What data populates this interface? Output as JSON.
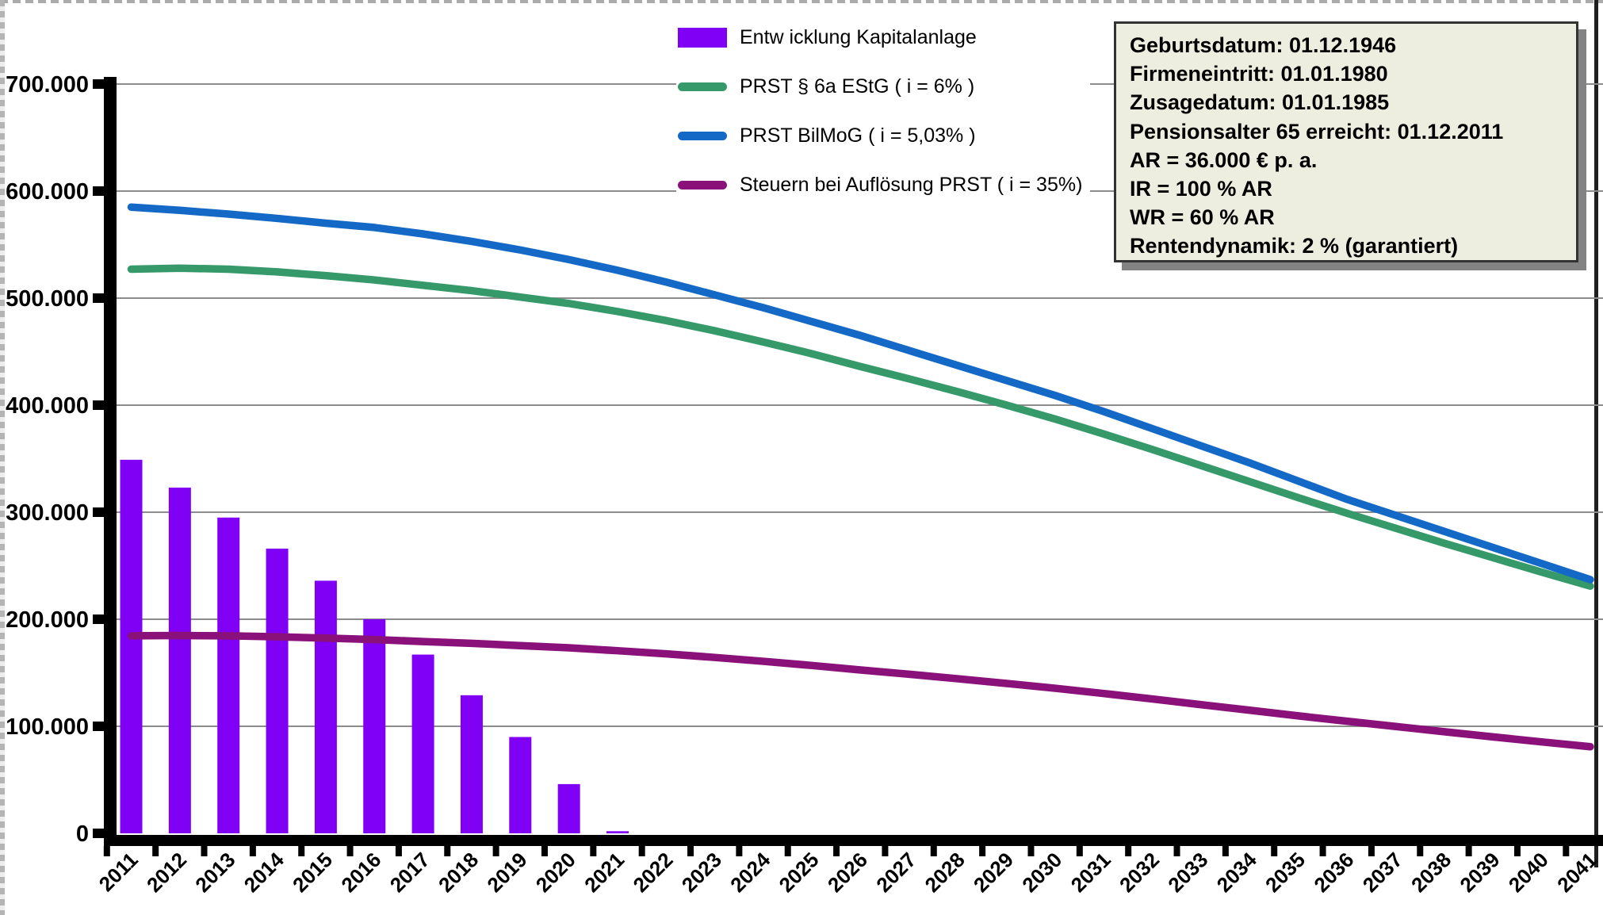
{
  "legend": {
    "items": [
      {
        "label": "Entw icklung Kapitalanlage",
        "swatch": "bar",
        "color": "#7f00f5"
      },
      {
        "label": "PRST § 6a EStG ( i = 6% )",
        "swatch": "line",
        "color": "#36996a"
      },
      {
        "label": "PRST BilMoG ( i = 5,03% )",
        "swatch": "line",
        "color": "#1468c6"
      },
      {
        "label": "Steuern bei Auflösung PRST ( i = 35%)",
        "swatch": "line",
        "color": "#8a107a"
      }
    ]
  },
  "info_box": {
    "lines": [
      "Geburtsdatum: 01.12.1946",
      "Firmeneintritt: 01.01.1980",
      "Zusagedatum: 01.01.1985",
      "Pensionsalter 65 erreicht: 01.12.2011",
      "AR = 36.000 € p. a.",
      "IR = 100 % AR",
      "WR = 60 % AR",
      "Rentendynamik: 2 % (garantiert)"
    ]
  },
  "chart_data": {
    "type": "bar+line",
    "title": "",
    "xlabel": "",
    "ylabel": "",
    "grid": true,
    "legend_position": "top-center",
    "ylim": [
      0,
      700000
    ],
    "ytick_step": 100000,
    "ytick_labels": [
      "0",
      "100.000",
      "200.000",
      "300.000",
      "400.000",
      "500.000",
      "600.000",
      "700.000"
    ],
    "categories": [
      "2011",
      "2012",
      "2013",
      "2014",
      "2015",
      "2016",
      "2017",
      "2018",
      "2019",
      "2020",
      "2021",
      "2022",
      "2023",
      "2024",
      "2025",
      "2026",
      "2027",
      "2028",
      "2029",
      "2030",
      "2031",
      "2032",
      "2033",
      "2034",
      "2035",
      "2036",
      "2037",
      "2038",
      "2039",
      "2040",
      "2041"
    ],
    "series": [
      {
        "name": "Entw icklung Kapitalanlage",
        "type": "bar",
        "color": "#7f00f5",
        "values": [
          349000,
          323000,
          295000,
          266000,
          236000,
          200000,
          167000,
          129000,
          90000,
          46000,
          2000,
          0,
          0,
          0,
          0,
          0,
          0,
          0,
          0,
          0,
          0,
          0,
          0,
          0,
          0,
          0,
          0,
          0,
          0,
          0,
          0
        ]
      },
      {
        "name": "PRST § 6a EStG ( i = 6% )",
        "type": "line",
        "color": "#36996a",
        "values": [
          527000,
          528000,
          527000,
          524500,
          521000,
          517000,
          512000,
          507000,
          501000,
          495000,
          487500,
          479000,
          469500,
          459000,
          448000,
          436000,
          424500,
          412500,
          400000,
          387000,
          373000,
          358500,
          343500,
          328500,
          313500,
          299000,
          285000,
          271000,
          257500,
          244000,
          231000
        ]
      },
      {
        "name": "PRST BilMoG ( i = 5,03% )",
        "type": "line",
        "color": "#1468c6",
        "values": [
          585000,
          582000,
          578500,
          574500,
          570000,
          566000,
          560000,
          553000,
          545000,
          536000,
          526000,
          515000,
          503000,
          491000,
          478000,
          465000,
          451000,
          437000,
          423000,
          409000,
          394000,
          378000,
          362000,
          346000,
          329000,
          312000,
          297000,
          282000,
          267000,
          252000,
          237000
        ]
      },
      {
        "name": "Steuern bei Auflösung PRST ( i = 35%)",
        "type": "line",
        "color": "#8a107a",
        "values": [
          184500,
          184800,
          184500,
          183600,
          182400,
          181000,
          179200,
          177500,
          175400,
          173300,
          170600,
          167700,
          164300,
          160700,
          156800,
          152600,
          148600,
          144400,
          140000,
          135500,
          130600,
          125500,
          120200,
          115000,
          109700,
          104700,
          99800,
          94900,
          90100,
          85400,
          80900
        ]
      }
    ],
    "colors": {
      "gridline": "#8c8c8c",
      "axis": "#000000",
      "infobox_bg": "#eeeee0",
      "infobox_border": "#333333",
      "infobox_shadow": "#838383"
    }
  }
}
